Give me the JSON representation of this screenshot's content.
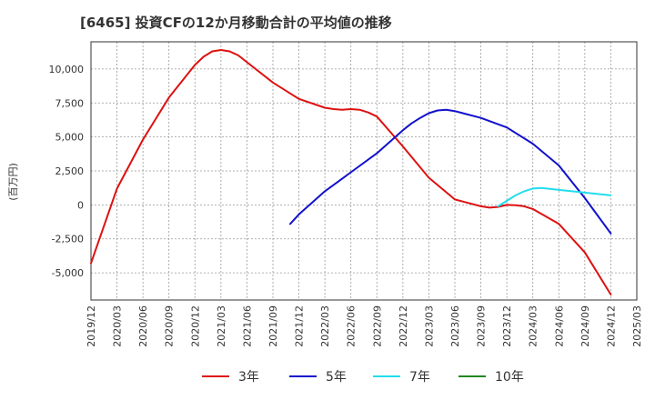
{
  "chart_data": {
    "type": "line",
    "title": "[6465]  投資CFの12か月移動合計の平均値の推移",
    "xlabel": "",
    "ylabel": "(百万円)",
    "ylim": [
      -7000,
      12000
    ],
    "yticks": [
      -5000,
      -2500,
      0,
      2500,
      5000,
      7500,
      10000
    ],
    "ytick_labels": [
      "-5,000",
      "-2,500",
      "0",
      "2,500",
      "5,000",
      "7,500",
      "10,000"
    ],
    "xticks": [
      "2019/12",
      "2020/03",
      "2020/06",
      "2020/09",
      "2020/12",
      "2021/03",
      "2021/06",
      "2021/09",
      "2021/12",
      "2022/03",
      "2022/06",
      "2022/09",
      "2022/12",
      "2023/03",
      "2023/06",
      "2023/09",
      "2023/12",
      "2024/03",
      "2024/06",
      "2024/09",
      "2024/12",
      "2025/03"
    ],
    "grid": true,
    "legend_position": "bottom",
    "series": [
      {
        "name": "3年",
        "color": "#dd1111",
        "x": [
          "2019/12",
          "2020/03",
          "2020/06",
          "2020/09",
          "2020/12",
          "2021/01",
          "2021/02",
          "2021/03",
          "2021/04",
          "2021/05",
          "2021/06",
          "2021/09",
          "2021/12",
          "2022/03",
          "2022/04",
          "2022/05",
          "2022/06",
          "2022/07",
          "2022/08",
          "2022/09",
          "2022/12",
          "2023/03",
          "2023/06",
          "2023/09",
          "2023/10",
          "2023/11",
          "2023/12",
          "2024/01",
          "2024/02",
          "2024/03",
          "2024/06",
          "2024/09",
          "2024/12"
        ],
        "values": [
          -4300,
          1200,
          4800,
          7900,
          10300,
          10900,
          11300,
          11400,
          11300,
          11000,
          10500,
          9000,
          7800,
          7150,
          7050,
          7000,
          7050,
          7000,
          6800,
          6500,
          4300,
          2000,
          400,
          -100,
          -200,
          -150,
          0,
          -30,
          -100,
          -300,
          -1400,
          -3500,
          -6600
        ]
      },
      {
        "name": "5年",
        "color": "#1111cc",
        "x": [
          "2021/11",
          "2021/12",
          "2022/03",
          "2022/06",
          "2022/09",
          "2022/12",
          "2023/01",
          "2023/02",
          "2023/03",
          "2023/04",
          "2023/05",
          "2023/06",
          "2023/09",
          "2023/12",
          "2024/03",
          "2024/06",
          "2024/09",
          "2024/12"
        ],
        "values": [
          -1400,
          -700,
          1000,
          2400,
          3800,
          5500,
          6000,
          6400,
          6750,
          6950,
          7000,
          6900,
          6400,
          5700,
          4500,
          2900,
          500,
          -2100
        ]
      },
      {
        "name": "7年",
        "color": "#22ddee",
        "x": [
          "2023/11",
          "2023/12",
          "2024/01",
          "2024/02",
          "2024/03",
          "2024/04",
          "2024/06",
          "2024/09",
          "2024/12"
        ],
        "values": [
          -100,
          300,
          700,
          1000,
          1200,
          1250,
          1100,
          900,
          700
        ]
      },
      {
        "name": "10年",
        "color": "#228822",
        "x": [],
        "values": []
      }
    ]
  }
}
